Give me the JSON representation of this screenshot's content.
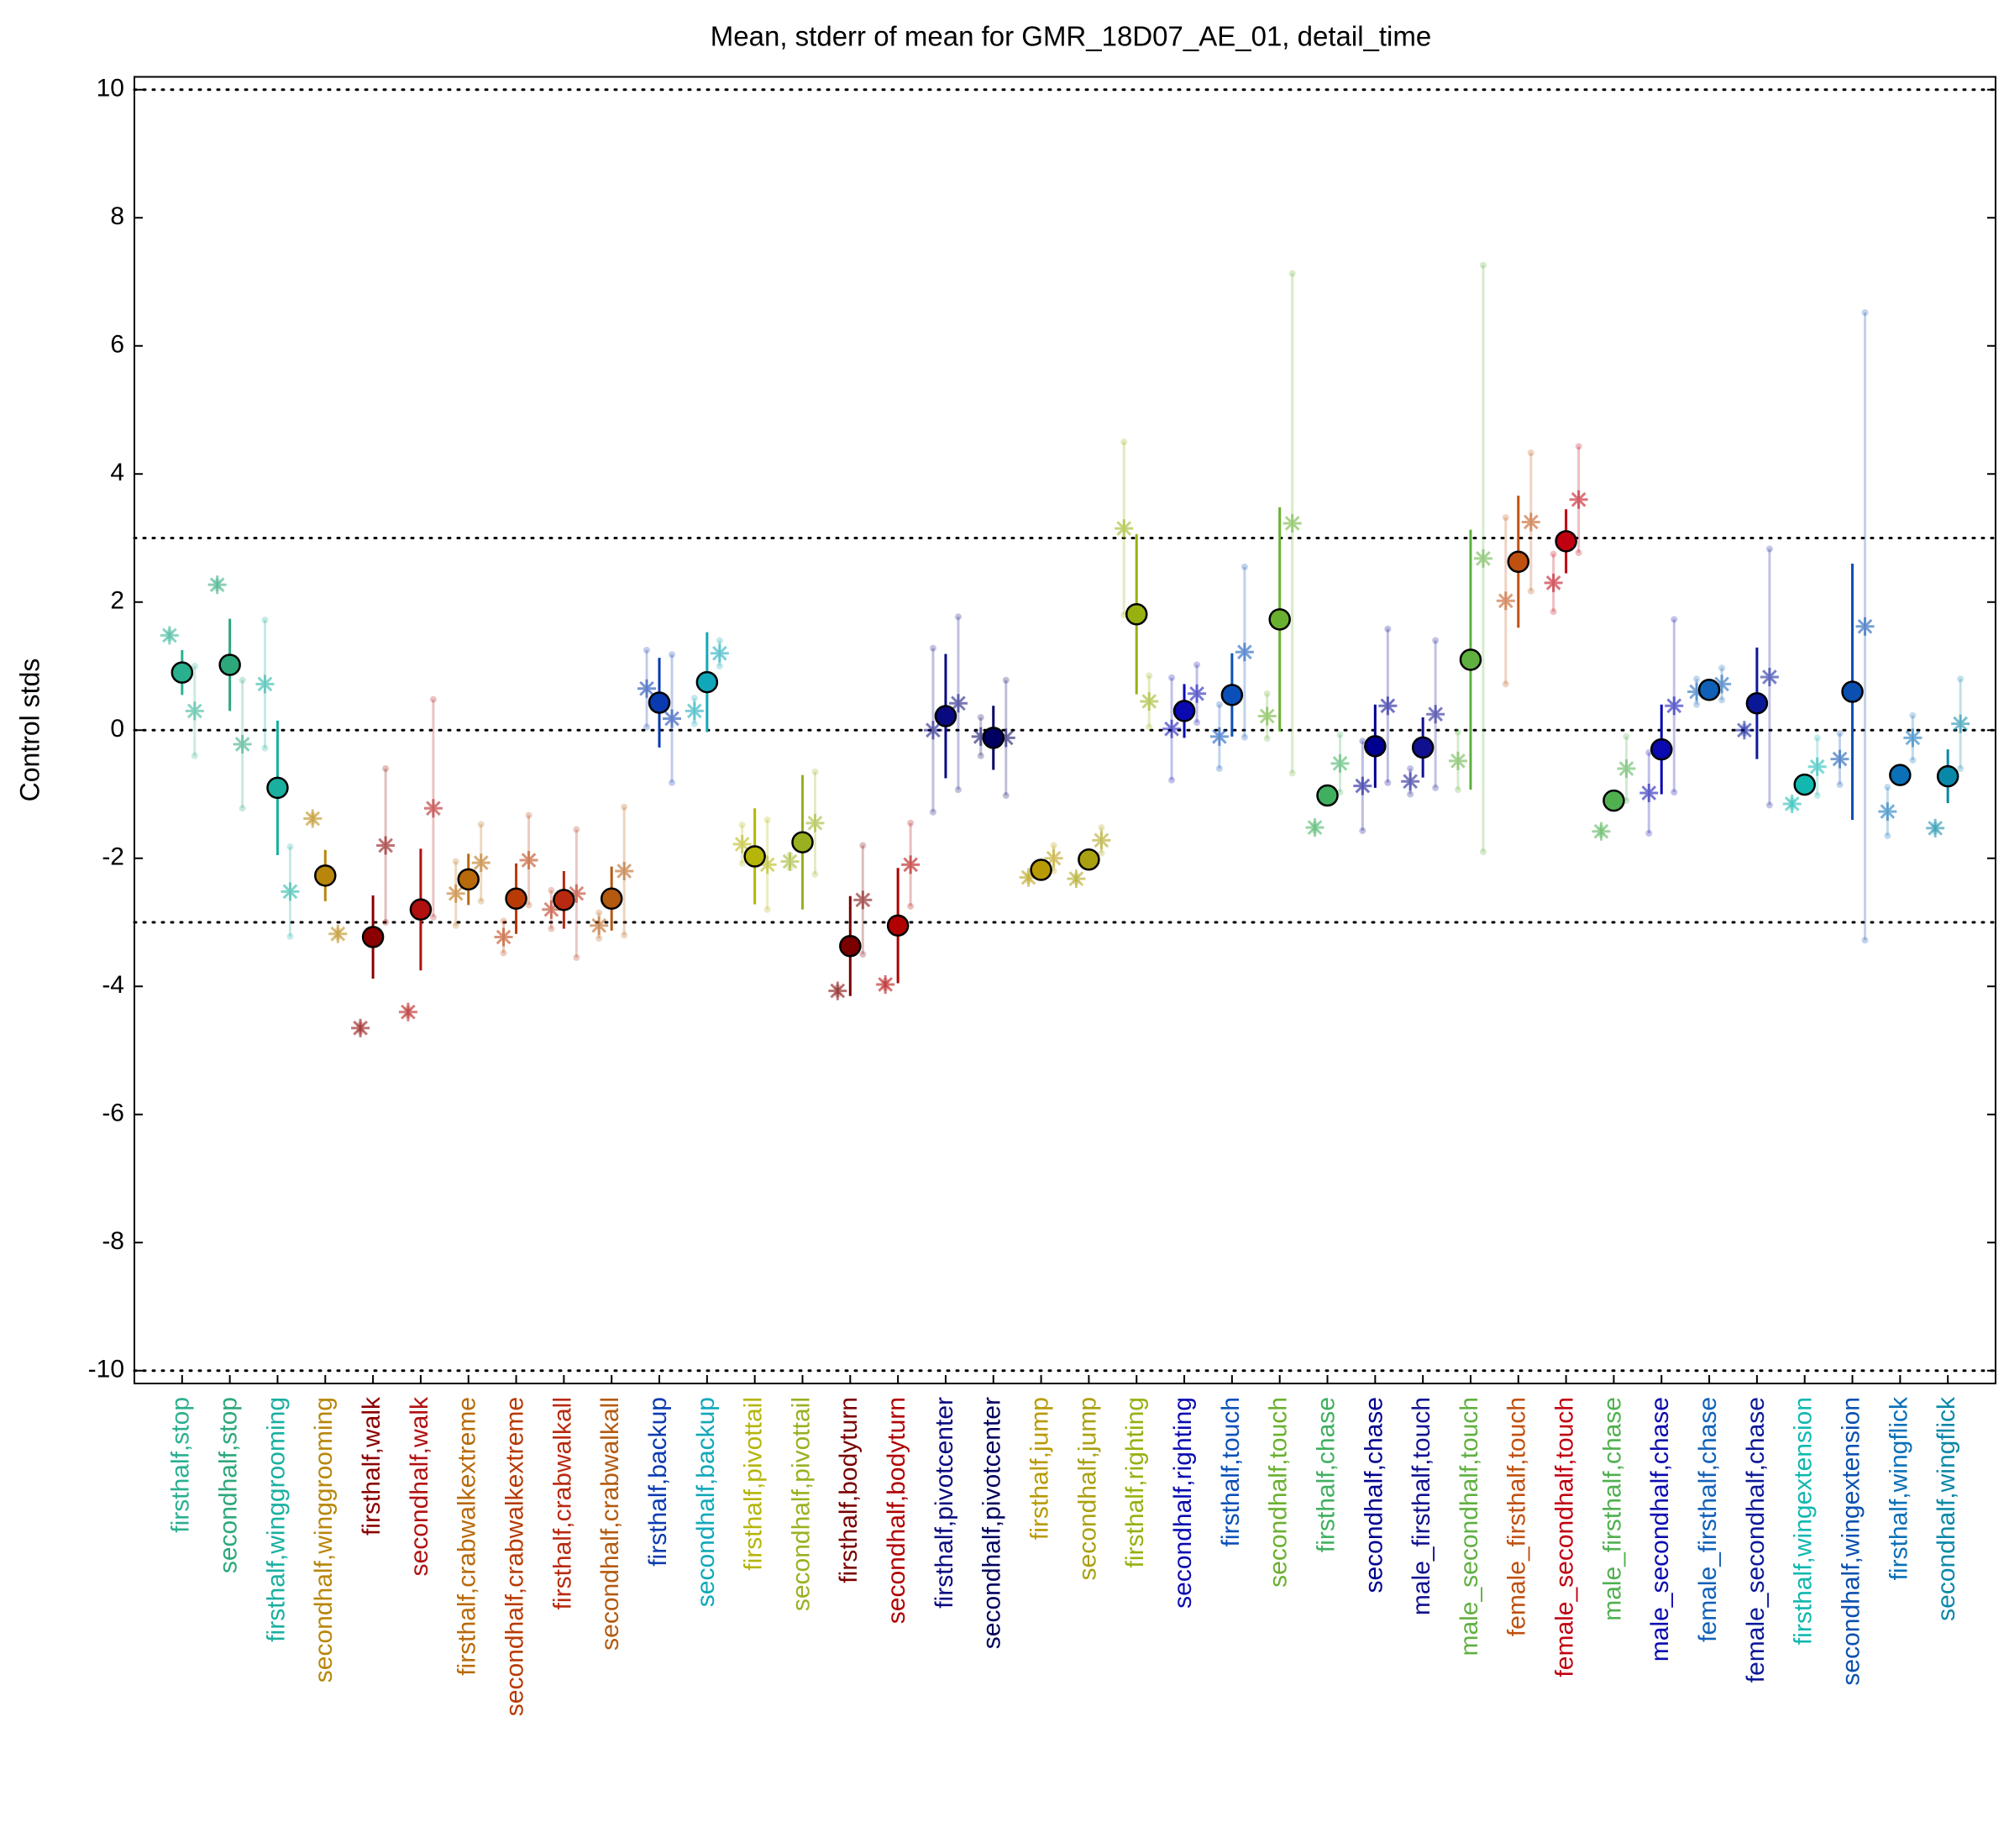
{
  "chart_data": {
    "type": "errorbar",
    "title": "Mean, stderr of mean for GMR_18D07_AE_01, detail_time",
    "ylabel": "Control stds",
    "ylim": [
      -10.2,
      10.2
    ],
    "yticks": [
      -10,
      -8,
      -6,
      -4,
      -2,
      0,
      2,
      4,
      6,
      8,
      10
    ],
    "hlines": [
      10,
      3,
      0,
      -3,
      -10
    ],
    "categories": [
      "firsthalf,stop",
      "secondhalf,stop",
      "firsthalf,winggrooming",
      "secondhalf,winggrooming",
      "firsthalf,walk",
      "secondhalf,walk",
      "firsthalf,crabwalkextreme",
      "secondhalf,crabwalkextreme",
      "firsthalf,crabwalkall",
      "secondhalf,crabwalkall",
      "firsthalf,backup",
      "secondhalf,backup",
      "firsthalf,pivottail",
      "secondhalf,pivottail",
      "firsthalf,bodyturn",
      "secondhalf,bodyturn",
      "firsthalf,pivotcenter",
      "secondhalf,pivotcenter",
      "firsthalf,jump",
      "secondhalf,jump",
      "firsthalf,righting",
      "secondhalf,righting",
      "firsthalf,touch",
      "secondhalf,touch",
      "firsthalf,chase",
      "secondhalf,chase",
      "male_firsthalf,touch",
      "male_secondhalf,touch",
      "female_firsthalf,touch",
      "female_secondhalf,touch",
      "male_firsthalf,chase",
      "male_secondhalf,chase",
      "female_firsthalf,chase",
      "female_secondhalf,chase",
      "firsthalf,wingextension",
      "secondhalf,wingextension",
      "firsthalf,wingflick",
      "secondhalf,wingflick"
    ],
    "values": [
      0.9,
      1.02,
      -0.9,
      -2.27,
      -3.23,
      -2.8,
      -2.33,
      -2.63,
      -2.65,
      -2.63,
      0.43,
      0.75,
      -1.97,
      -1.75,
      -3.37,
      -3.05,
      0.22,
      -0.12,
      -2.18,
      -2.02,
      1.81,
      0.3,
      0.55,
      1.73,
      -1.02,
      -0.25,
      -0.27,
      1.1,
      2.63,
      2.95,
      -1.1,
      -0.3,
      0.63,
      0.42,
      -0.85,
      0.6,
      -0.7,
      -0.72
    ],
    "errors": [
      0.35,
      0.72,
      1.05,
      0.4,
      0.65,
      0.95,
      0.4,
      0.55,
      0.45,
      0.5,
      0.7,
      0.78,
      0.75,
      1.05,
      0.78,
      0.9,
      0.97,
      0.5,
      0.05,
      0.05,
      1.25,
      0.42,
      0.65,
      1.75,
      0.08,
      0.65,
      0.47,
      2.03,
      1.03,
      0.5,
      0.08,
      0.7,
      0.15,
      0.87,
      0.05,
      2.0,
      0.1,
      0.42
    ],
    "colors": [
      "#2bb08f",
      "#2ca87a",
      "#19b0a0",
      "#b8860b",
      "#8b0000",
      "#b01010",
      "#b86a0a",
      "#b83a05",
      "#b82a10",
      "#b45a10",
      "#0a3ab0",
      "#10a8b8",
      "#b5b50a",
      "#9ab020",
      "#7a0000",
      "#b00000",
      "#0a0a80",
      "#000060",
      "#b89a05",
      "#aaa010",
      "#98b010",
      "#0a0ab0",
      "#0a50b8",
      "#6ab030",
      "#40b060",
      "#000090",
      "#101090",
      "#60b040",
      "#c05010",
      "#c00010",
      "#50b050",
      "#0a0ab0",
      "#1060b8",
      "#0a1898",
      "#10b8b0",
      "#0a50b0",
      "#0a70b8",
      "#0a88a8"
    ],
    "stars": [
      [
        1.48,
        0.3
      ],
      [
        2.27,
        -0.22
      ],
      [
        0.72,
        -2.52
      ],
      [
        -1.38,
        -3.18
      ],
      [
        -4.65,
        -1.8
      ],
      [
        -4.4,
        -1.22
      ],
      [
        -2.55,
        -2.07
      ],
      [
        -3.23,
        -2.03
      ],
      [
        -2.8,
        -2.55
      ],
      [
        -3.05,
        -2.2
      ],
      [
        0.65,
        0.18
      ],
      [
        0.3,
        1.2
      ],
      [
        -1.78,
        -2.1
      ],
      [
        -2.05,
        -1.45
      ],
      [
        -4.07,
        -2.65
      ],
      [
        -3.97,
        -2.1
      ],
      [
        0.0,
        0.42
      ],
      [
        -0.1,
        -0.12
      ],
      [
        -2.3,
        -2.0
      ],
      [
        -2.32,
        -1.72
      ],
      [
        3.15,
        0.45
      ],
      [
        0.02,
        0.57
      ],
      [
        -0.1,
        1.22
      ],
      [
        0.22,
        3.23
      ],
      [
        -1.52,
        -0.52
      ],
      [
        -0.87,
        0.38
      ],
      [
        -0.8,
        0.25
      ],
      [
        -0.48,
        2.68
      ],
      [
        2.02,
        3.25
      ],
      [
        2.3,
        3.6
      ],
      [
        -1.58,
        -0.6
      ],
      [
        -0.98,
        0.38
      ],
      [
        0.6,
        0.72
      ],
      [
        0.0,
        0.83
      ],
      [
        -1.15,
        -0.57
      ],
      [
        -0.45,
        1.62
      ],
      [
        -1.27,
        -0.12
      ],
      [
        -1.53,
        0.1
      ]
    ],
    "star_errors": [
      [
        0.05,
        0.7
      ],
      [
        0.05,
        1.0
      ],
      [
        1.0,
        0.7
      ],
      [
        0.05,
        0.05
      ],
      [
        0.05,
        1.2
      ],
      [
        0.05,
        1.7
      ],
      [
        0.5,
        0.6
      ],
      [
        0.25,
        0.7
      ],
      [
        0.3,
        1.0
      ],
      [
        0.2,
        1.0
      ],
      [
        0.6,
        1.0
      ],
      [
        0.2,
        0.2
      ],
      [
        0.3,
        0.7
      ],
      [
        0.1,
        0.8
      ],
      [
        0.05,
        0.85
      ],
      [
        0.05,
        0.65
      ],
      [
        1.28,
        1.35
      ],
      [
        0.3,
        0.9
      ],
      [
        0.05,
        0.2
      ],
      [
        0.05,
        0.2
      ],
      [
        1.35,
        0.4
      ],
      [
        0.8,
        0.45
      ],
      [
        0.5,
        1.33
      ],
      [
        0.35,
        3.9
      ],
      [
        0.05,
        0.45
      ],
      [
        0.7,
        1.2
      ],
      [
        0.2,
        1.15
      ],
      [
        0.45,
        4.58
      ],
      [
        1.3,
        1.08
      ],
      [
        0.45,
        0.83
      ],
      [
        0.05,
        0.5
      ],
      [
        0.63,
        1.35
      ],
      [
        0.2,
        0.25
      ],
      [
        0.05,
        2.0
      ],
      [
        0.05,
        0.45
      ],
      [
        0.4,
        4.9
      ],
      [
        0.38,
        0.35
      ],
      [
        0.05,
        0.7
      ]
    ]
  }
}
